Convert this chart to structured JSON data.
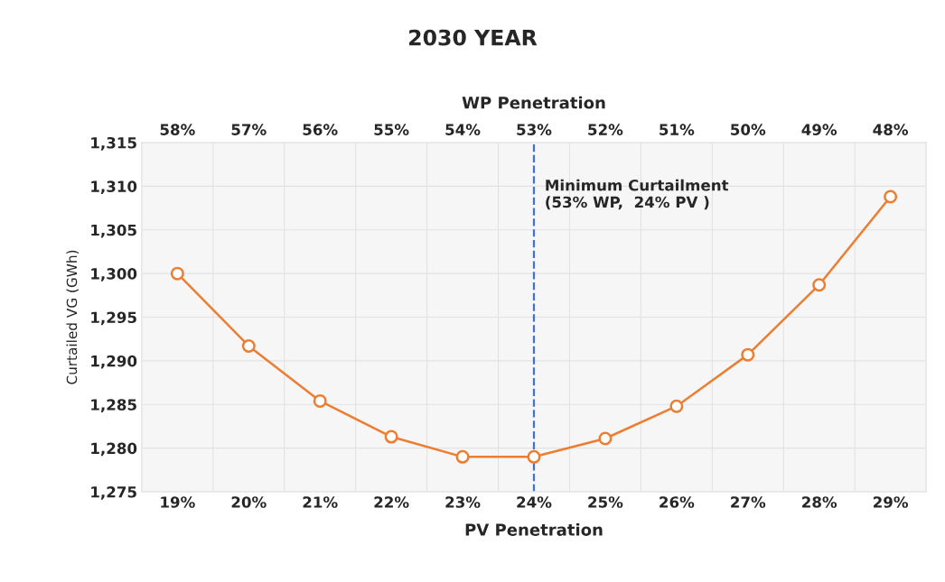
{
  "chart_data": {
    "type": "line",
    "title": "2030 YEAR",
    "xlabel": "PV Penetration",
    "x2label": "WP Penetration",
    "ylabel": "Curtailed VG (GWh)",
    "x": [
      19,
      20,
      21,
      22,
      23,
      24,
      25,
      26,
      27,
      28,
      29
    ],
    "series": [
      {
        "color": "#ed7d31",
        "values": [
          1300,
          1291.7,
          1285.4,
          1281.3,
          1279.0,
          1279.0,
          1281.1,
          1284.8,
          1290.7,
          1298.7,
          1308.8
        ]
      }
    ],
    "xlim": [
      18.5,
      29.5
    ],
    "xticks": [
      {
        "value": 19,
        "label": "19%"
      },
      {
        "value": 20,
        "label": "20%"
      },
      {
        "value": 21,
        "label": "21%"
      },
      {
        "value": 22,
        "label": "22%"
      },
      {
        "value": 23,
        "label": "23%"
      },
      {
        "value": 24,
        "label": "24%"
      },
      {
        "value": 25,
        "label": "25%"
      },
      {
        "value": 26,
        "label": "26%"
      },
      {
        "value": 27,
        "label": "27%"
      },
      {
        "value": 28,
        "label": "28%"
      },
      {
        "value": 29,
        "label": "29%"
      }
    ],
    "x2lim": [
      58.5,
      47.5
    ],
    "x2ticks": [
      {
        "value": 58,
        "label": "58%"
      },
      {
        "value": 57,
        "label": "57%"
      },
      {
        "value": 56,
        "label": "56%"
      },
      {
        "value": 55,
        "label": "55%"
      },
      {
        "value": 54,
        "label": "54%"
      },
      {
        "value": 53,
        "label": "53%"
      },
      {
        "value": 52,
        "label": "52%"
      },
      {
        "value": 51,
        "label": "51%"
      },
      {
        "value": 50,
        "label": "50%"
      },
      {
        "value": 49,
        "label": "49%"
      },
      {
        "value": 48,
        "label": "48%"
      }
    ],
    "ylim": [
      1275,
      1315
    ],
    "yticks": [
      {
        "value": 1275,
        "label": "1,275"
      },
      {
        "value": 1280,
        "label": "1,280"
      },
      {
        "value": 1285,
        "label": "1,285"
      },
      {
        "value": 1290,
        "label": "1,290"
      },
      {
        "value": 1295,
        "label": "1,295"
      },
      {
        "value": 1300,
        "label": "1,300"
      },
      {
        "value": 1305,
        "label": "1,305"
      },
      {
        "value": 1310,
        "label": "1,310"
      },
      {
        "value": 1315,
        "label": "1,315"
      }
    ],
    "ref_lines": [
      {
        "axis": "x",
        "value": 24,
        "label": "Minimum Curtailment\n(53% WP,  24% PV )",
        "color": "#4472c4",
        "line_style": "dashed"
      }
    ],
    "grid": true,
    "marker": "circle",
    "line_style": "solid"
  }
}
